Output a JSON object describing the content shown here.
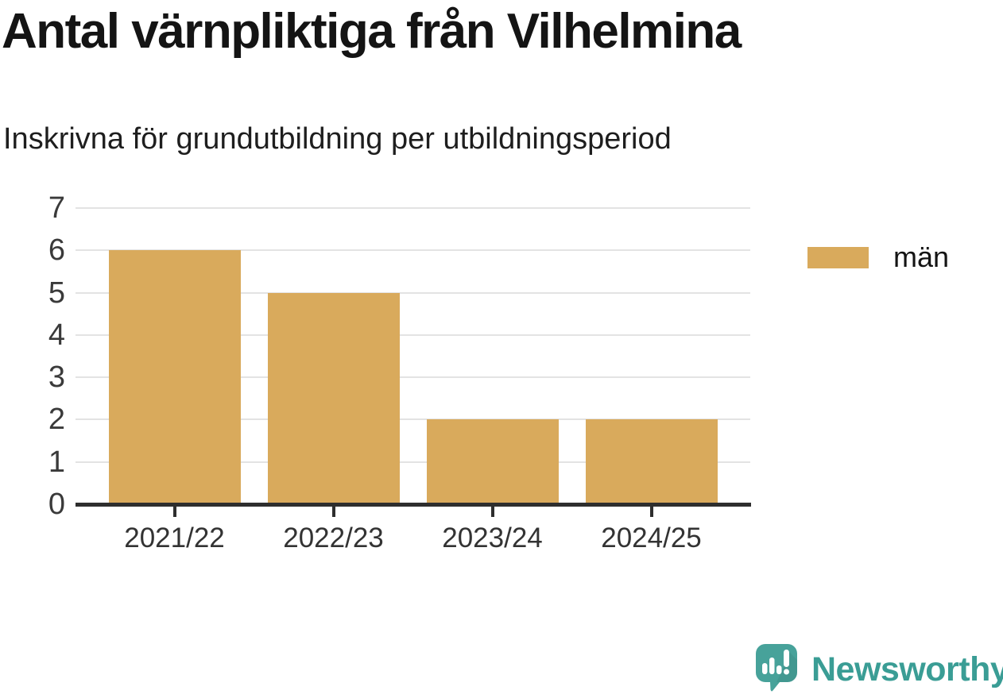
{
  "title": "Antal värnpliktiga från Vilhelmina",
  "subtitle": "Inskrivna för grundutbildning per utbildningsperiod",
  "legend": {
    "label": "män",
    "swatch_color": "#d9aa5c"
  },
  "chart_data": {
    "type": "bar",
    "title": "Antal värnpliktiga från Vilhelmina",
    "subtitle": "Inskrivna för grundutbildning per utbildningsperiod",
    "categories": [
      "2021/22",
      "2022/23",
      "2023/24",
      "2024/25"
    ],
    "series": [
      {
        "name": "män",
        "values": [
          6,
          5,
          2,
          2
        ]
      }
    ],
    "xlabel": "",
    "ylabel": "",
    "ylim": [
      0,
      7
    ],
    "yticks": [
      0,
      1,
      2,
      3,
      4,
      5,
      6,
      7
    ],
    "grid": true,
    "legend_position": "right",
    "bar_color": "#d9aa5c"
  },
  "colors": {
    "bar": "#d9aa5c",
    "gridline": "#e3e3e3",
    "axis": "#2e2e2e",
    "tick_text": "#3a3a3a",
    "title_text": "#141414",
    "brand_teal": "#3a9d95",
    "logo_bubble": "#47a29a"
  },
  "branding": {
    "name": "Newsworthy",
    "logo_icon": "bar-chart-speech-bubble-icon"
  }
}
